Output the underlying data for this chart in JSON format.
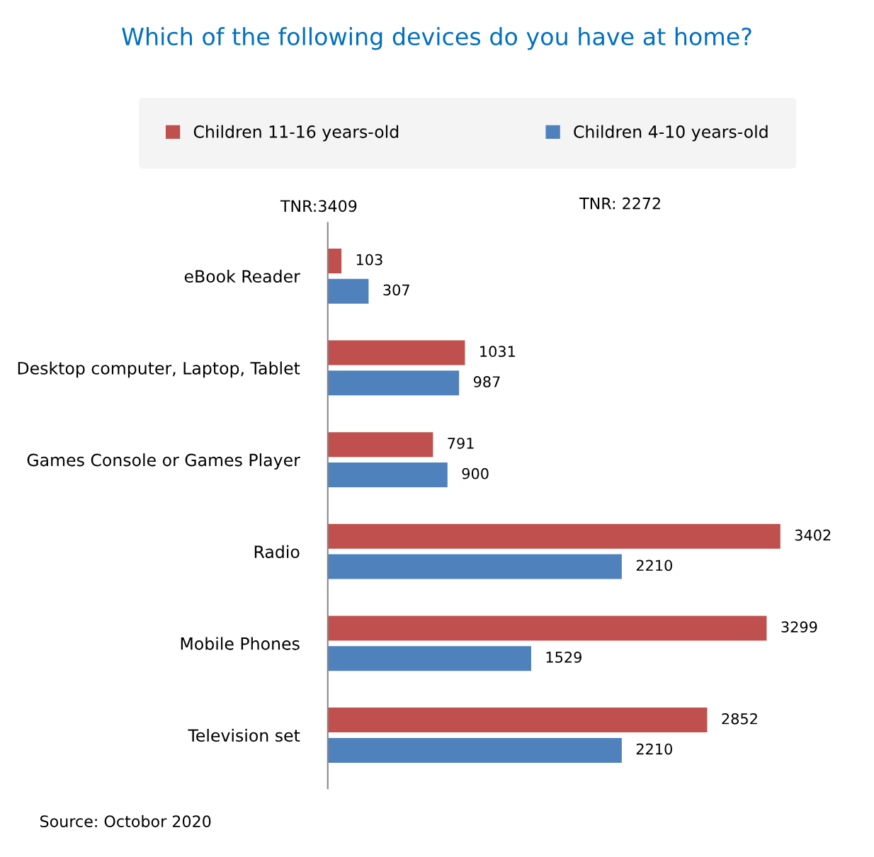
{
  "chart_data": {
    "type": "bar",
    "orientation": "horizontal",
    "title": "Which of the following devices do you have at home?",
    "categories": [
      "eBook Reader",
      "Desktop computer, Laptop, Tablet",
      "Games Console or Games Player",
      "Radio",
      "Mobile Phones",
      "Television set"
    ],
    "series": [
      {
        "name": "Children 11-16 years-old",
        "color": "#c0504d",
        "values": [
          103,
          1031,
          791,
          3402,
          3299,
          2852
        ]
      },
      {
        "name": "Children 4-10 years-old",
        "color": "#4f81bd",
        "values": [
          307,
          987,
          900,
          2210,
          1529,
          2210
        ]
      }
    ],
    "data_labels": true,
    "legend": "top",
    "grid": false,
    "annotations": [
      "TNR:3409",
      "TNR: 2272",
      "Source: Octobor 2020"
    ]
  }
}
